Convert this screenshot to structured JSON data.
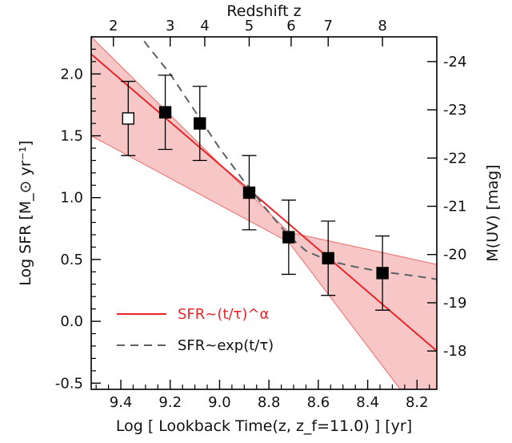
{
  "chart_data": {
    "type": "scatter",
    "xlabel": "Log [ Lookback Time(z, z_f=11.0) ] [yr]",
    "ylabel": "Log SFR [M_⊙ yr⁻¹]",
    "top_xlabel": "Redshift z",
    "right_ylabel": "M(UV) [mag]",
    "xlim": [
      9.52,
      8.12
    ],
    "ylim": [
      -0.55,
      2.3
    ],
    "x_ticks": [
      "9.4",
      "9.2",
      "9.0",
      "8.8",
      "8.6",
      "8.4",
      "8.2"
    ],
    "y_ticks": [
      "-0.5",
      "0.0",
      "0.5",
      "1.0",
      "1.5",
      "2.0"
    ],
    "top_ticks": [
      {
        "label": "2",
        "x": 9.43
      },
      {
        "label": "3",
        "x": 9.2
      },
      {
        "label": "4",
        "x": 9.06
      },
      {
        "label": "5",
        "x": 8.88
      },
      {
        "label": "6",
        "x": 8.71
      },
      {
        "label": "7",
        "x": 8.56
      },
      {
        "label": "8",
        "x": 8.34
      }
    ],
    "right_ticks": [
      {
        "label": "-24",
        "y": 2.1
      },
      {
        "label": "-23",
        "y": 1.71
      },
      {
        "label": "-22",
        "y": 1.32
      },
      {
        "label": "-21",
        "y": 0.93
      },
      {
        "label": "-20",
        "y": 0.54
      },
      {
        "label": "-19",
        "y": 0.15
      },
      {
        "label": "-18",
        "y": -0.24
      }
    ],
    "series": [
      {
        "marker": "open-square",
        "points": [
          {
            "x": 9.37,
            "y": 1.64,
            "err": 0.3
          }
        ]
      },
      {
        "marker": "filled-square",
        "points": [
          {
            "x": 9.22,
            "y": 1.69,
            "err": 0.3
          },
          {
            "x": 9.08,
            "y": 1.6,
            "err": 0.3
          },
          {
            "x": 8.88,
            "y": 1.04,
            "err": 0.3
          },
          {
            "x": 8.72,
            "y": 0.68,
            "err": 0.3
          },
          {
            "x": 8.56,
            "y": 0.51,
            "err": 0.3
          },
          {
            "x": 8.34,
            "y": 0.39,
            "err": 0.3
          }
        ]
      },
      {
        "name": "SFR~(t/τ)^α",
        "type": "line",
        "color": "#e8262a",
        "x": [
          9.52,
          8.12
        ],
        "y": [
          2.16,
          -0.24
        ]
      },
      {
        "name": "SFR~exp(t/τ)",
        "type": "dashed-line",
        "color": "#5a6266",
        "x": [
          9.34,
          9.2,
          9.1,
          9.0,
          8.9,
          8.8,
          8.72,
          8.65,
          8.56,
          8.45,
          8.34,
          8.22,
          8.12
        ],
        "y": [
          2.35,
          2.0,
          1.7,
          1.4,
          1.13,
          0.88,
          0.69,
          0.57,
          0.49,
          0.44,
          0.4,
          0.37,
          0.34
        ]
      }
    ],
    "band": {
      "color": "#f4b4b4",
      "x": [
        9.52,
        8.72,
        8.12
      ],
      "upper": [
        2.3,
        0.72,
        0.46
      ],
      "lower": [
        1.5,
        0.64,
        -0.94
      ]
    },
    "legend": {
      "position": "bottom-left",
      "entries": [
        {
          "text": "SFR~(t/τ)^α",
          "color": "#e8262a",
          "style": "solid"
        },
        {
          "text": "SFR~exp(t/τ)",
          "color": "#5a6266",
          "style": "dashed"
        }
      ]
    },
    "grid": false
  }
}
